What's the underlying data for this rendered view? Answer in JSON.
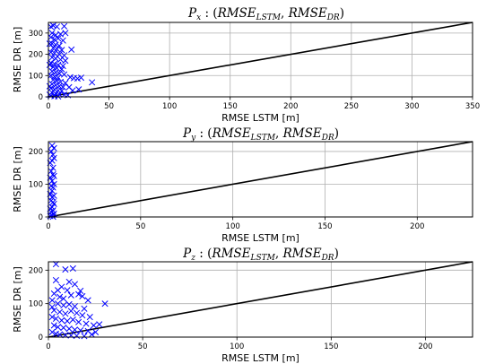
{
  "chart_data": [
    {
      "type": "scatter",
      "title": {
        "main": "P",
        "main_sub": "x",
        "sep": " : (",
        "a": "RMSE",
        "a_sub": "LSTM",
        "comma": ", ",
        "b": "RMSE",
        "b_sub": "DR",
        "close": ")"
      },
      "xlabel": "RMSE LSTM [m]",
      "ylabel": "RMSE DR [m]",
      "xlim": [
        0,
        350
      ],
      "ylim": [
        0,
        350
      ],
      "xticks": [
        0,
        50,
        100,
        150,
        200,
        250,
        300,
        350
      ],
      "yticks": [
        0,
        100,
        200,
        300
      ],
      "grid": true,
      "marker": "x",
      "marker_color": "#0000ff",
      "reference_line": {
        "slope": 1,
        "color": "#000000"
      },
      "points": [
        [
          2,
          330
        ],
        [
          4,
          335
        ],
        [
          7,
          330
        ],
        [
          13,
          332
        ],
        [
          3,
          300
        ],
        [
          6,
          290
        ],
        [
          10,
          295
        ],
        [
          14,
          300
        ],
        [
          2,
          280
        ],
        [
          5,
          270
        ],
        [
          8,
          275
        ],
        [
          12,
          265
        ],
        [
          3,
          250
        ],
        [
          6,
          245
        ],
        [
          9,
          240
        ],
        [
          4,
          230
        ],
        [
          7,
          225
        ],
        [
          11,
          220
        ],
        [
          19,
          222
        ],
        [
          2,
          210
        ],
        [
          5,
          205
        ],
        [
          9,
          200
        ],
        [
          13,
          195
        ],
        [
          3,
          185
        ],
        [
          6,
          180
        ],
        [
          10,
          175
        ],
        [
          14,
          170
        ],
        [
          2,
          160
        ],
        [
          5,
          155
        ],
        [
          8,
          150
        ],
        [
          12,
          145
        ],
        [
          4,
          140
        ],
        [
          7,
          135
        ],
        [
          11,
          130
        ],
        [
          3,
          120
        ],
        [
          6,
          115
        ],
        [
          9,
          110
        ],
        [
          13,
          105
        ],
        [
          2,
          100
        ],
        [
          5,
          95
        ],
        [
          8,
          90
        ],
        [
          18,
          92
        ],
        [
          21,
          88
        ],
        [
          24,
          86
        ],
        [
          27,
          90
        ],
        [
          36,
          68
        ],
        [
          4,
          80
        ],
        [
          7,
          75
        ],
        [
          10,
          70
        ],
        [
          14,
          65
        ],
        [
          3,
          60
        ],
        [
          6,
          55
        ],
        [
          9,
          50
        ],
        [
          12,
          45
        ],
        [
          17,
          45
        ],
        [
          2,
          40
        ],
        [
          5,
          35
        ],
        [
          8,
          30
        ],
        [
          11,
          28
        ],
        [
          20,
          30
        ],
        [
          25,
          35
        ],
        [
          3,
          20
        ],
        [
          6,
          15
        ],
        [
          9,
          12
        ],
        [
          13,
          10
        ],
        [
          16,
          8
        ],
        [
          2,
          5
        ],
        [
          5,
          3
        ],
        [
          8,
          2
        ],
        [
          1,
          10
        ],
        [
          1,
          50
        ],
        [
          1,
          150
        ],
        [
          1,
          250
        ]
      ]
    },
    {
      "type": "scatter",
      "title": {
        "main": "P",
        "main_sub": "y",
        "sep": " : (",
        "a": "RMSE",
        "a_sub": "LSTM",
        "comma": ", ",
        "b": "RMSE",
        "b_sub": "DR",
        "close": ")"
      },
      "xlabel": "RMSE LSTM [m]",
      "ylabel": "RMSE DR [m]",
      "xlim": [
        0,
        230
      ],
      "ylim": [
        0,
        230
      ],
      "xticks": [
        0,
        50,
        100,
        150,
        200
      ],
      "yticks": [
        0,
        100,
        200
      ],
      "grid": true,
      "marker": "x",
      "marker_color": "#0000ff",
      "reference_line": {
        "slope": 1,
        "color": "#000000"
      },
      "points": [
        [
          2,
          218
        ],
        [
          3,
          210
        ],
        [
          1.5,
          200
        ],
        [
          2.5,
          190
        ],
        [
          3,
          180
        ],
        [
          2,
          172
        ],
        [
          1,
          165
        ],
        [
          2.5,
          150
        ],
        [
          1.5,
          140
        ],
        [
          2.5,
          130
        ],
        [
          3,
          125
        ],
        [
          1,
          120
        ],
        [
          2,
          110
        ],
        [
          3,
          100
        ],
        [
          1.5,
          95
        ],
        [
          2.5,
          90
        ],
        [
          2,
          80
        ],
        [
          1,
          70
        ],
        [
          3,
          65
        ],
        [
          2,
          60
        ],
        [
          1.5,
          50
        ],
        [
          2.5,
          45
        ],
        [
          3,
          40
        ],
        [
          2,
          30
        ],
        [
          1,
          25
        ],
        [
          2.5,
          20
        ],
        [
          1.5,
          15
        ],
        [
          3,
          10
        ],
        [
          2,
          5
        ],
        [
          1,
          3
        ],
        [
          2.5,
          1
        ]
      ]
    },
    {
      "type": "scatter",
      "title": {
        "main": "P",
        "main_sub": "z",
        "sep": " : (",
        "a": "RMSE",
        "a_sub": "LSTM",
        "comma": ", ",
        "b": "RMSE",
        "b_sub": "DR",
        "close": ")"
      },
      "xlabel": "RMSE LSTM [m]",
      "ylabel": "RMSE DR [m]",
      "xlim": [
        0,
        225
      ],
      "ylim": [
        0,
        225
      ],
      "xticks": [
        0,
        50,
        100,
        150,
        200
      ],
      "yticks": [
        0,
        100,
        200
      ],
      "grid": true,
      "marker": "x",
      "marker_color": "#0000ff",
      "reference_line": {
        "slope": 1,
        "color": "#000000"
      },
      "points": [
        [
          4,
          218
        ],
        [
          9,
          202
        ],
        [
          13,
          205
        ],
        [
          4,
          170
        ],
        [
          11,
          165
        ],
        [
          14,
          158
        ],
        [
          7,
          150
        ],
        [
          10,
          140
        ],
        [
          17,
          138
        ],
        [
          3,
          130
        ],
        [
          6,
          120
        ],
        [
          12,
          125
        ],
        [
          16,
          128
        ],
        [
          18,
          122
        ],
        [
          21,
          110
        ],
        [
          30,
          100
        ],
        [
          2,
          110
        ],
        [
          5,
          100
        ],
        [
          8,
          95
        ],
        [
          11,
          98
        ],
        [
          14,
          92
        ],
        [
          19,
          85
        ],
        [
          3,
          80
        ],
        [
          6,
          75
        ],
        [
          9,
          70
        ],
        [
          12,
          78
        ],
        [
          15,
          72
        ],
        [
          18,
          65
        ],
        [
          22,
          60
        ],
        [
          2,
          60
        ],
        [
          4,
          55
        ],
        [
          7,
          50
        ],
        [
          10,
          48
        ],
        [
          13,
          52
        ],
        [
          16,
          45
        ],
        [
          20,
          40
        ],
        [
          24,
          35
        ],
        [
          27,
          38
        ],
        [
          3,
          35
        ],
        [
          5,
          30
        ],
        [
          8,
          28
        ],
        [
          11,
          25
        ],
        [
          14,
          22
        ],
        [
          17,
          20
        ],
        [
          21,
          18
        ],
        [
          25,
          15
        ],
        [
          2,
          15
        ],
        [
          4,
          10
        ],
        [
          6,
          8
        ],
        [
          9,
          6
        ],
        [
          12,
          5
        ],
        [
          15,
          4
        ],
        [
          19,
          3
        ],
        [
          23,
          8
        ],
        [
          5,
          140
        ],
        [
          8,
          115
        ],
        [
          2,
          90
        ]
      ]
    }
  ]
}
